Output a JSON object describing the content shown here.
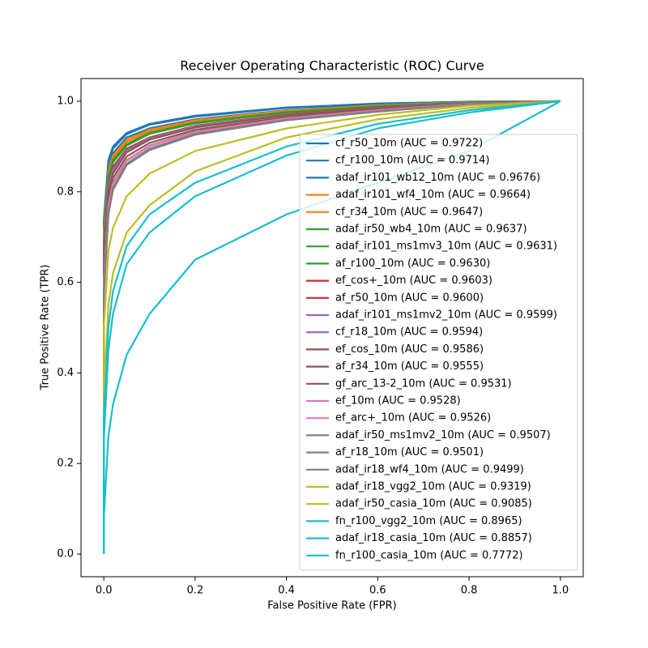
{
  "chart_data": {
    "type": "line",
    "title": "Receiver Operating Characteristic (ROC) Curve",
    "x_label": "False Positive Rate (FPR)",
    "y_label": "True Positive Rate (TPR)",
    "x": [
      0,
      0,
      0.01,
      0.02,
      0.05,
      0.1,
      0.2,
      0.4,
      0.6,
      0.8,
      1
    ],
    "xlim": [
      -0.05,
      1.05
    ],
    "ylim": [
      -0.05,
      1.05
    ],
    "xticks": [
      {
        "value": 0,
        "label": "0.0"
      },
      0.2,
      0.4,
      0.6,
      0.8,
      {
        "value": 1,
        "label": "1.0"
      }
    ],
    "yticks": [
      {
        "value": 0,
        "label": "0.0"
      },
      0.2,
      0.4,
      0.6,
      0.8,
      {
        "value": 1,
        "label": "1.0"
      }
    ],
    "legend": "lower right",
    "series": [
      {
        "name": "cf_r50_10m (AUC = 0.9722)",
        "color": "#1f77b4",
        "values": [
          0,
          0.74,
          0.87,
          0.9,
          0.93,
          0.95,
          0.968,
          0.986,
          0.995,
          0.999,
          1
        ]
      },
      {
        "name": "cf_r100_10m (AUC = 0.9714)",
        "color": "#1f77b4",
        "values": [
          0,
          0.73,
          0.865,
          0.895,
          0.927,
          0.948,
          0.966,
          0.985,
          0.994,
          0.999,
          1
        ]
      },
      {
        "name": "adaf_ir101_wb12_10m (AUC = 0.9676)",
        "color": "#1f77b4",
        "values": [
          0,
          0.72,
          0.85,
          0.885,
          0.92,
          0.94,
          0.96,
          0.98,
          0.992,
          0.998,
          1
        ]
      },
      {
        "name": "adaf_ir101_wf4_10m (AUC = 0.9664)",
        "color": "#ff7f0e",
        "values": [
          0,
          0.71,
          0.845,
          0.88,
          0.915,
          0.937,
          0.958,
          0.979,
          0.991,
          0.998,
          1
        ]
      },
      {
        "name": "cf_r34_10m (AUC = 0.9647)",
        "color": "#ff7f0e",
        "values": [
          0,
          0.7,
          0.84,
          0.875,
          0.91,
          0.933,
          0.955,
          0.977,
          0.99,
          0.997,
          1
        ]
      },
      {
        "name": "adaf_ir50_wb4_10m (AUC = 0.9637)",
        "color": "#2ca02c",
        "values": [
          0,
          0.69,
          0.835,
          0.87,
          0.905,
          0.93,
          0.953,
          0.976,
          0.989,
          0.997,
          1
        ]
      },
      {
        "name": "adaf_ir101_ms1mv3_10m (AUC = 0.9631)",
        "color": "#2ca02c",
        "values": [
          0,
          0.69,
          0.83,
          0.865,
          0.903,
          0.928,
          0.952,
          0.975,
          0.989,
          0.997,
          1
        ]
      },
      {
        "name": "af_r100_10m (AUC = 0.9630)",
        "color": "#2ca02c",
        "values": [
          0,
          0.68,
          0.83,
          0.865,
          0.902,
          0.928,
          0.951,
          0.975,
          0.988,
          0.997,
          1
        ]
      },
      {
        "name": "ef_cos+_10m (AUC = 0.9603)",
        "color": "#d62728",
        "values": [
          0,
          0.66,
          0.815,
          0.855,
          0.895,
          0.92,
          0.946,
          0.971,
          0.986,
          0.996,
          1
        ]
      },
      {
        "name": "af_r50_10m (AUC = 0.9600)",
        "color": "#d62728",
        "values": [
          0,
          0.66,
          0.81,
          0.85,
          0.893,
          0.919,
          0.945,
          0.971,
          0.986,
          0.996,
          1
        ]
      },
      {
        "name": "adaf_ir101_ms1mv2_10m (AUC = 0.9599)",
        "color": "#9467bd",
        "values": [
          0,
          0.65,
          0.81,
          0.85,
          0.892,
          0.918,
          0.945,
          0.97,
          0.985,
          0.996,
          1
        ]
      },
      {
        "name": "cf_r18_10m (AUC = 0.9594)",
        "color": "#9467bd",
        "values": [
          0,
          0.65,
          0.805,
          0.845,
          0.89,
          0.917,
          0.944,
          0.97,
          0.985,
          0.996,
          1
        ]
      },
      {
        "name": "ef_cos_10m (AUC = 0.9586)",
        "color": "#8c564b",
        "values": [
          0,
          0.64,
          0.8,
          0.84,
          0.887,
          0.915,
          0.942,
          0.969,
          0.984,
          0.995,
          1
        ]
      },
      {
        "name": "af_r34_10m (AUC = 0.9555)",
        "color": "#8c564b",
        "values": [
          0,
          0.62,
          0.785,
          0.83,
          0.878,
          0.908,
          0.937,
          0.965,
          0.982,
          0.995,
          1
        ]
      },
      {
        "name": "gf_arc_13-2_10m (AUC = 0.9531)",
        "color": "#8c564b",
        "values": [
          0,
          0.6,
          0.77,
          0.82,
          0.87,
          0.902,
          0.933,
          0.962,
          0.98,
          0.994,
          1
        ]
      },
      {
        "name": "ef_10m (AUC = 0.9528)",
        "color": "#e377c2",
        "values": [
          0,
          0.6,
          0.77,
          0.818,
          0.869,
          0.901,
          0.932,
          0.962,
          0.98,
          0.994,
          1
        ]
      },
      {
        "name": "ef_arc+_10m (AUC = 0.9526)",
        "color": "#e377c2",
        "values": [
          0,
          0.6,
          0.768,
          0.817,
          0.868,
          0.9,
          0.932,
          0.962,
          0.98,
          0.994,
          1
        ]
      },
      {
        "name": "adaf_ir50_ms1mv2_10m (AUC = 0.9507)",
        "color": "#7f7f7f",
        "values": [
          0,
          0.58,
          0.755,
          0.808,
          0.862,
          0.895,
          0.928,
          0.959,
          0.978,
          0.993,
          1
        ]
      },
      {
        "name": "af_r18_10m (AUC = 0.9501)",
        "color": "#7f7f7f",
        "values": [
          0,
          0.58,
          0.75,
          0.805,
          0.86,
          0.893,
          0.927,
          0.958,
          0.977,
          0.993,
          1
        ]
      },
      {
        "name": "adaf_ir18_wf4_10m (AUC = 0.9499)",
        "color": "#7f7f7f",
        "values": [
          0,
          0.57,
          0.75,
          0.804,
          0.859,
          0.892,
          0.926,
          0.958,
          0.977,
          0.993,
          1
        ]
      },
      {
        "name": "adaf_ir18_vgg2_10m (AUC = 0.9319)",
        "color": "#bcbd22",
        "values": [
          0,
          0.5,
          0.67,
          0.72,
          0.79,
          0.84,
          0.89,
          0.94,
          0.97,
          0.99,
          1
        ]
      },
      {
        "name": "adaf_ir50_casia_10m (AUC = 0.9085)",
        "color": "#bcbd22",
        "values": [
          0,
          0.35,
          0.55,
          0.62,
          0.71,
          0.77,
          0.845,
          0.92,
          0.96,
          0.985,
          1
        ]
      },
      {
        "name": "fn_r100_vgg2_10m (AUC = 0.8965)",
        "color": "#17becf",
        "values": [
          0,
          0.3,
          0.5,
          0.58,
          0.68,
          0.75,
          0.82,
          0.9,
          0.95,
          0.98,
          1
        ]
      },
      {
        "name": "adaf_ir18_casia_10m (AUC = 0.8857)",
        "color": "#17becf",
        "values": [
          0,
          0.25,
          0.45,
          0.53,
          0.64,
          0.71,
          0.79,
          0.88,
          0.94,
          0.975,
          1
        ]
      },
      {
        "name": "fn_r100_casia_10m (AUC = 0.7772)",
        "color": "#17becf",
        "values": [
          0,
          0.08,
          0.26,
          0.33,
          0.44,
          0.53,
          0.65,
          0.75,
          0.82,
          0.89,
          1
        ]
      }
    ]
  }
}
